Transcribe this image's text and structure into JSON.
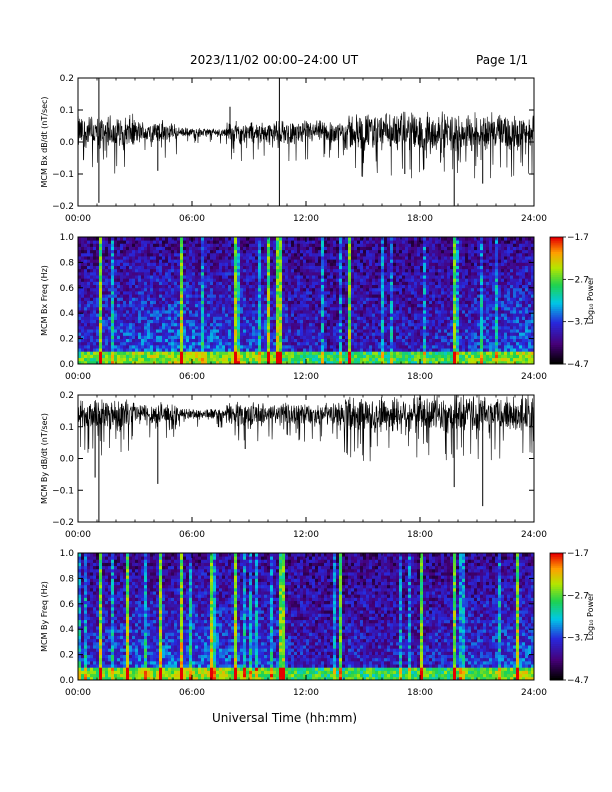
{
  "header": {
    "title": "2023/11/02  00:00–24:00 UT",
    "page": "Page 1/1"
  },
  "x_axis_title": "Universal Time (hh:mm)",
  "chart_data": [
    {
      "type": "line",
      "ylabel": "MCM Bx dB/dt (nT/sec)",
      "x_ticks": [
        "00:00",
        "06:00",
        "12:00",
        "18:00",
        "24:00"
      ],
      "y_ticks": [
        "0.2",
        "0.1",
        "0.0",
        "−0.1",
        "−0.2"
      ],
      "xlim_hours": [
        0,
        24
      ],
      "ylim": [
        -0.2,
        0.2
      ],
      "baseline": 0.03,
      "noise_segments": [
        {
          "start_hour": 0.0,
          "end_hour": 3.0,
          "amplitude": 0.045
        },
        {
          "start_hour": 3.0,
          "end_hour": 5.2,
          "amplitude": 0.03
        },
        {
          "start_hour": 5.2,
          "end_hour": 7.8,
          "amplitude": 0.012
        },
        {
          "start_hour": 7.8,
          "end_hour": 14.0,
          "amplitude": 0.03
        },
        {
          "start_hour": 14.0,
          "end_hour": 24.0,
          "amplitude": 0.05
        }
      ],
      "spikes": [
        {
          "hour": 1.1,
          "value": -0.19
        },
        {
          "hour": 1.1,
          "value": 0.2
        },
        {
          "hour": 4.2,
          "value": -0.09
        },
        {
          "hour": 8.0,
          "value": 0.11
        },
        {
          "hour": 10.6,
          "value": 0.2
        },
        {
          "hour": 10.6,
          "value": -0.2
        },
        {
          "hour": 17.2,
          "value": -0.1
        },
        {
          "hour": 19.8,
          "value": -0.2
        },
        {
          "hour": 21.3,
          "value": -0.13
        }
      ]
    },
    {
      "type": "heatmap",
      "ylabel": "MCM Bx Freq (Hz)",
      "x_ticks": [
        "00:00",
        "06:00",
        "12:00",
        "18:00",
        "24:00"
      ],
      "y_ticks": [
        "1.0",
        "0.8",
        "0.6",
        "0.4",
        "0.2",
        "0.0"
      ],
      "xlim_hours": [
        0,
        24
      ],
      "ylim": [
        0,
        1
      ],
      "colorbar": {
        "label": "Log₁₀ Power",
        "ticks": [
          "−1.7",
          "−2.7",
          "−3.7",
          "−4.7"
        ],
        "range": [
          -4.7,
          -1.7
        ]
      },
      "bright_streak_hours": [
        1.1,
        5.3,
        5.4,
        8.2,
        9.9,
        10.4,
        10.6,
        14.2,
        19.8
      ]
    },
    {
      "type": "line",
      "ylabel": "MCM By dB/dt (nT/sec)",
      "x_ticks": [
        "00:00",
        "06:00",
        "12:00",
        "18:00",
        "24:00"
      ],
      "y_ticks": [
        "0.2",
        "0.1",
        "0.0",
        "−0.1",
        "−0.2"
      ],
      "xlim_hours": [
        0,
        24
      ],
      "ylim": [
        -0.2,
        0.2
      ],
      "baseline": 0.14,
      "noise_segments": [
        {
          "start_hour": 0.0,
          "end_hour": 3.0,
          "amplitude": 0.045
        },
        {
          "start_hour": 3.0,
          "end_hour": 5.2,
          "amplitude": 0.03
        },
        {
          "start_hour": 5.2,
          "end_hour": 7.8,
          "amplitude": 0.015
        },
        {
          "start_hour": 7.8,
          "end_hour": 14.0,
          "amplitude": 0.03
        },
        {
          "start_hour": 14.0,
          "end_hour": 24.0,
          "amplitude": 0.05
        }
      ],
      "spikes": [
        {
          "hour": 1.1,
          "value": -0.2
        },
        {
          "hour": 0.9,
          "value": -0.06
        },
        {
          "hour": 4.2,
          "value": -0.08
        },
        {
          "hour": 8.8,
          "value": 0.03
        },
        {
          "hour": 19.8,
          "value": -0.09
        },
        {
          "hour": 21.3,
          "value": -0.15
        }
      ]
    },
    {
      "type": "heatmap",
      "ylabel": "MCM By Freq (Hz)",
      "x_ticks": [
        "00:00",
        "06:00",
        "12:00",
        "18:00",
        "24:00"
      ],
      "y_ticks": [
        "1.0",
        "0.8",
        "0.6",
        "0.4",
        "0.2",
        "0.0"
      ],
      "xlim_hours": [
        0,
        24
      ],
      "ylim": [
        0,
        1
      ],
      "colorbar": {
        "label": "Log₁₀ Power",
        "ticks": [
          "−1.7",
          "−2.7",
          "−3.7",
          "−4.7"
        ],
        "range": [
          -4.7,
          -1.7
        ]
      },
      "bright_streak_hours": [
        1.1,
        2.6,
        4.2,
        5.3,
        7.0,
        8.2,
        10.5,
        10.7,
        13.8,
        18.0,
        19.8,
        23.0
      ]
    }
  ]
}
